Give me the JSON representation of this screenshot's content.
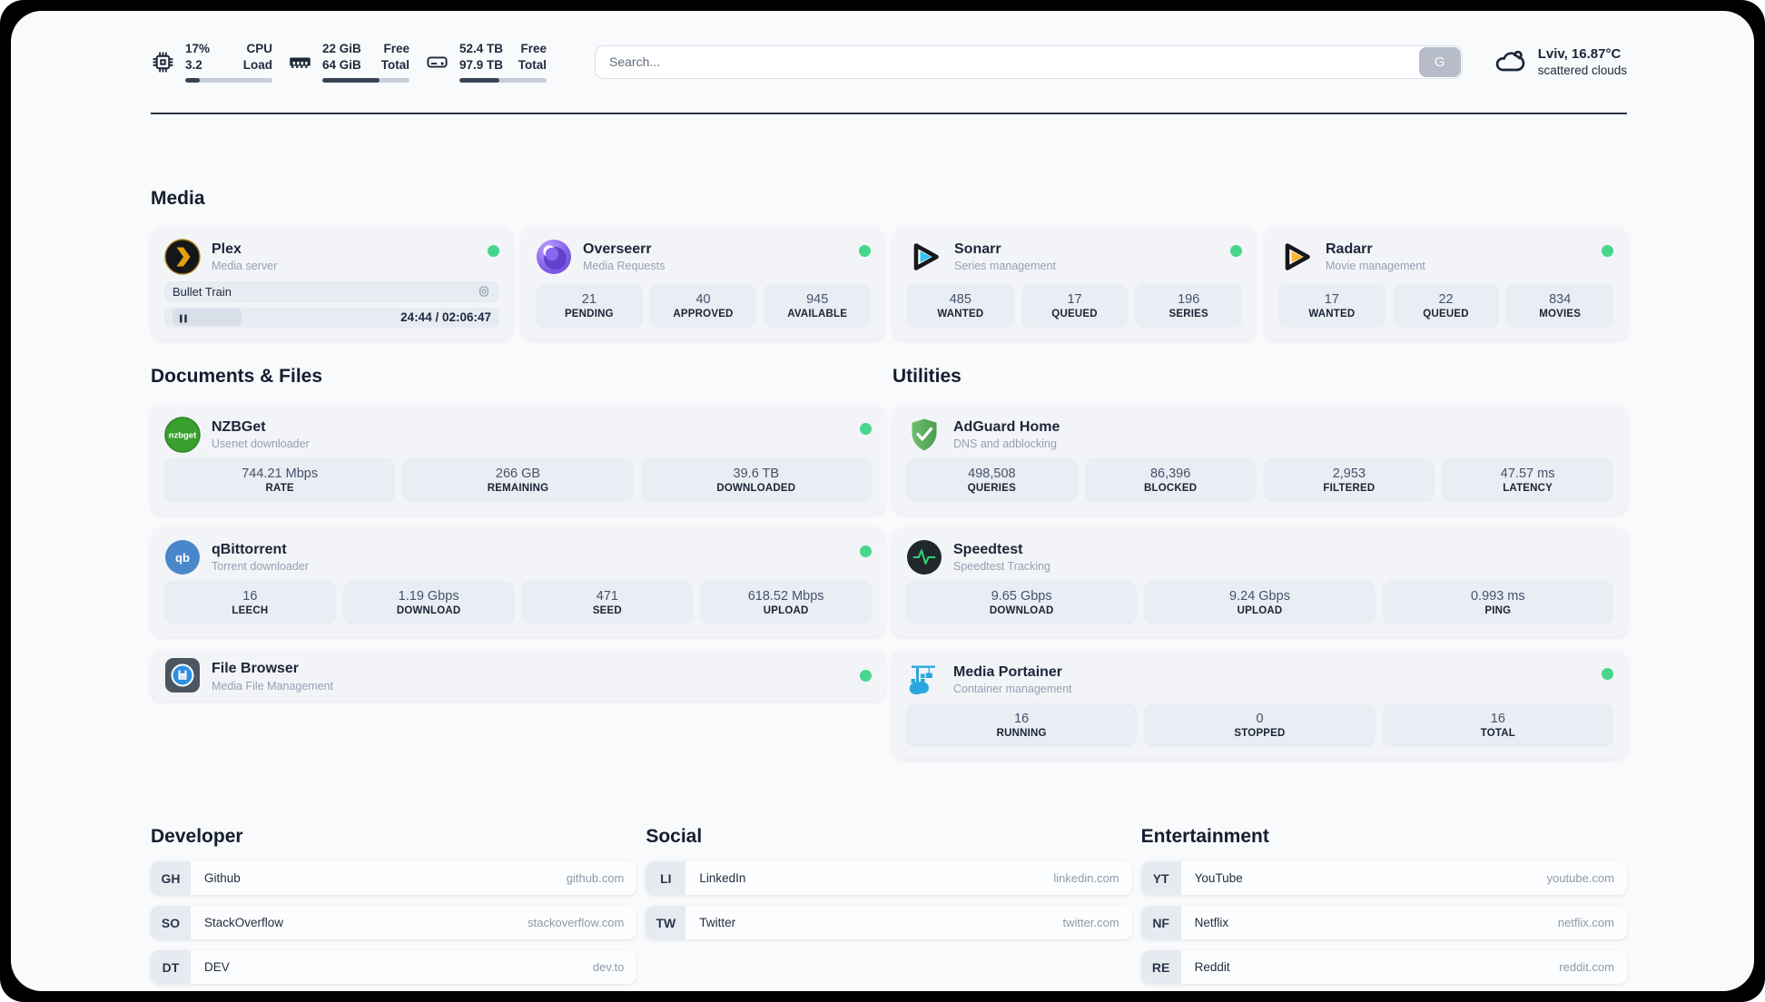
{
  "header": {
    "cpu": {
      "values": [
        "17%",
        "3.2"
      ],
      "labels": [
        "CPU",
        "Load"
      ],
      "progress": "17%"
    },
    "memory": {
      "values": [
        "22 GiB",
        "64 GiB"
      ],
      "labels": [
        "Free",
        "Total"
      ],
      "progress": "66%"
    },
    "storage": {
      "values": [
        "52.4 TB",
        "97.9 TB"
      ],
      "labels": [
        "Free",
        "Total"
      ],
      "progress": "46%"
    },
    "search": {
      "placeholder": "Search...",
      "engine_button": "G"
    },
    "weather": {
      "location_temp": "Lviv, 16.87°C",
      "condition": "scattered clouds"
    }
  },
  "media": {
    "heading": "Media",
    "plex": {
      "title": "Plex",
      "subtitle": "Media server",
      "now_playing": "Bullet Train",
      "elapsed_total": "24:44 / 02:06:47"
    },
    "overseerr": {
      "title": "Overseerr",
      "subtitle": "Media Requests",
      "stats": [
        {
          "value": "21",
          "label": "PENDING"
        },
        {
          "value": "40",
          "label": "APPROVED"
        },
        {
          "value": "945",
          "label": "AVAILABLE"
        }
      ]
    },
    "sonarr": {
      "title": "Sonarr",
      "subtitle": "Series management",
      "stats": [
        {
          "value": "485",
          "label": "WANTED"
        },
        {
          "value": "17",
          "label": "QUEUED"
        },
        {
          "value": "196",
          "label": "SERIES"
        }
      ]
    },
    "radarr": {
      "title": "Radarr",
      "subtitle": "Movie management",
      "stats": [
        {
          "value": "17",
          "label": "WANTED"
        },
        {
          "value": "22",
          "label": "QUEUED"
        },
        {
          "value": "834",
          "label": "MOVIES"
        }
      ]
    }
  },
  "documents": {
    "heading": "Documents & Files",
    "nzbget": {
      "title": "NZBGet",
      "subtitle": "Usenet downloader",
      "stats": [
        {
          "value": "744.21 Mbps",
          "label": "RATE"
        },
        {
          "value": "266 GB",
          "label": "REMAINING"
        },
        {
          "value": "39.6 TB",
          "label": "DOWNLOADED"
        }
      ]
    },
    "qbittorrent": {
      "title": "qBittorrent",
      "subtitle": "Torrent downloader",
      "stats": [
        {
          "value": "16",
          "label": "LEECH"
        },
        {
          "value": "1.19 Gbps",
          "label": "DOWNLOAD"
        },
        {
          "value": "471",
          "label": "SEED"
        },
        {
          "value": "618.52 Mbps",
          "label": "UPLOAD"
        }
      ]
    },
    "filebrowser": {
      "title": "File Browser",
      "subtitle": "Media File Management"
    }
  },
  "utilities": {
    "heading": "Utilities",
    "adguard": {
      "title": "AdGuard Home",
      "subtitle": "DNS and adblocking",
      "stats": [
        {
          "value": "498,508",
          "label": "QUERIES"
        },
        {
          "value": "86,396",
          "label": "BLOCKED"
        },
        {
          "value": "2,953",
          "label": "FILTERED"
        },
        {
          "value": "47.57 ms",
          "label": "LATENCY"
        }
      ]
    },
    "speedtest": {
      "title": "Speedtest",
      "subtitle": "Speedtest Tracking",
      "stats": [
        {
          "value": "9.65 Gbps",
          "label": "DOWNLOAD"
        },
        {
          "value": "9.24 Gbps",
          "label": "UPLOAD"
        },
        {
          "value": "0.993 ms",
          "label": "PING"
        }
      ]
    },
    "portainer": {
      "title": "Media Portainer",
      "subtitle": "Container management",
      "stats": [
        {
          "value": "16",
          "label": "RUNNING"
        },
        {
          "value": "0",
          "label": "STOPPED"
        },
        {
          "value": "16",
          "label": "TOTAL"
        }
      ]
    }
  },
  "bookmarks": {
    "developer": {
      "heading": "Developer",
      "links": [
        {
          "abbr": "GH",
          "name": "Github",
          "url": "github.com"
        },
        {
          "abbr": "SO",
          "name": "StackOverflow",
          "url": "stackoverflow.com"
        },
        {
          "abbr": "DT",
          "name": "DEV",
          "url": "dev.to"
        }
      ]
    },
    "social": {
      "heading": "Social",
      "links": [
        {
          "abbr": "LI",
          "name": "LinkedIn",
          "url": "linkedin.com"
        },
        {
          "abbr": "TW",
          "name": "Twitter",
          "url": "twitter.com"
        }
      ]
    },
    "entertainment": {
      "heading": "Entertainment",
      "links": [
        {
          "abbr": "YT",
          "name": "YouTube",
          "url": "youtube.com"
        },
        {
          "abbr": "NF",
          "name": "Netflix",
          "url": "netflix.com"
        },
        {
          "abbr": "RE",
          "name": "Reddit",
          "url": "reddit.com"
        }
      ]
    }
  },
  "icons": {
    "nzbget_glyph": "nzbget",
    "qbittorrent_glyph": "qb"
  },
  "colors": {
    "status_online": "#47d78c",
    "plex_amber": "#e5a00d",
    "sonarr_cyan": "#33c4f0",
    "radarr_gold": "#ffb92e",
    "adguard_green": "#5fb45f",
    "nzbget_green": "#39a02e",
    "qbittorrent_blue": "#4a86ca",
    "portainer_blue": "#2ba7dd",
    "speedtest_pulse": "#2fd67a",
    "text_navy": "#1d2737"
  }
}
